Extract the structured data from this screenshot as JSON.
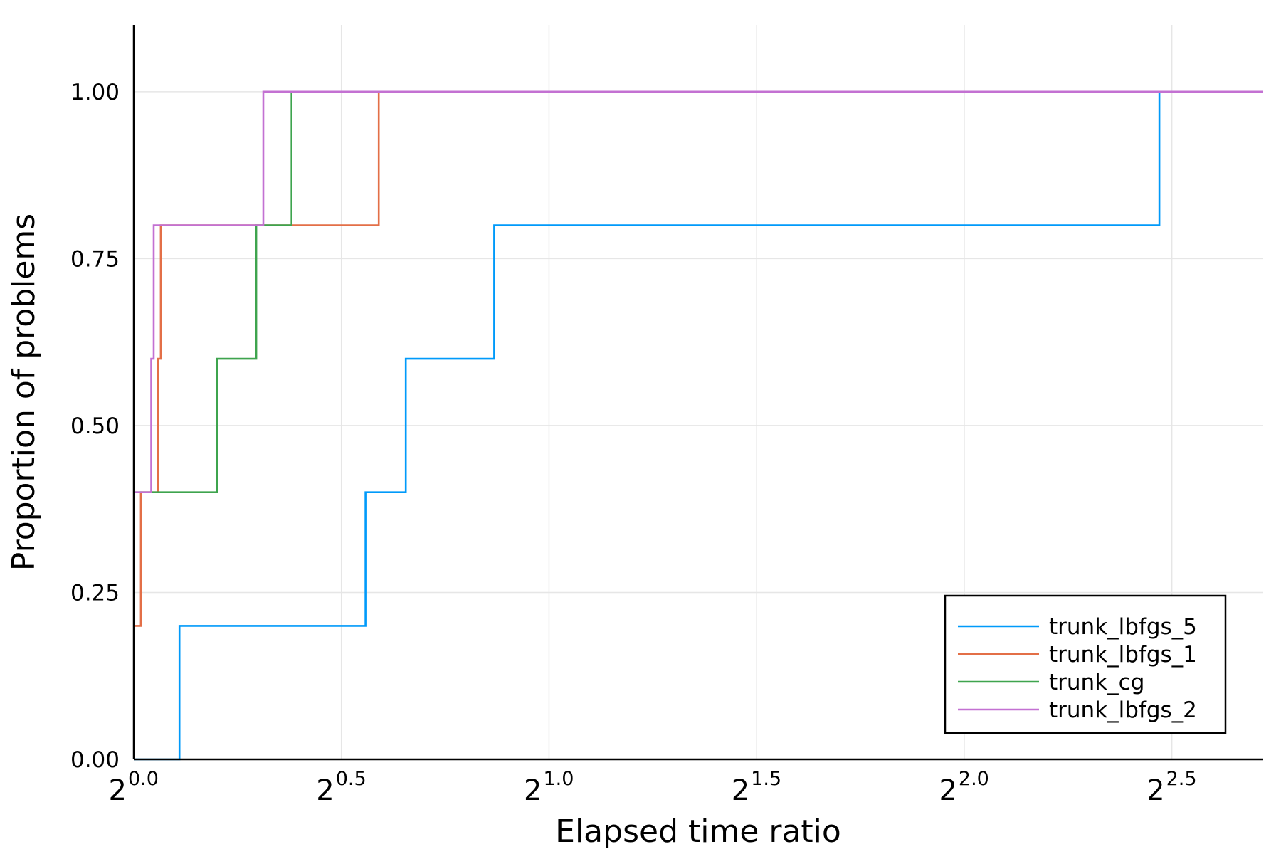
{
  "chart_data": {
    "type": "line",
    "step": true,
    "title": "",
    "xlabel": "Elapsed time ratio",
    "ylabel": "Proportion of problems",
    "x_scale": "log2",
    "xlim_log2": [
      0.0,
      2.72
    ],
    "ylim": [
      0.0,
      1.1
    ],
    "x_ticks": [
      {
        "base": "2",
        "exp": "0.0",
        "value": 0.0
      },
      {
        "base": "2",
        "exp": "0.5",
        "value": 0.5
      },
      {
        "base": "2",
        "exp": "1.0",
        "value": 1.0
      },
      {
        "base": "2",
        "exp": "1.5",
        "value": 1.5
      },
      {
        "base": "2",
        "exp": "2.0",
        "value": 2.0
      },
      {
        "base": "2",
        "exp": "2.5",
        "value": 2.5
      }
    ],
    "y_ticks": [
      {
        "label": "0.00",
        "value": 0.0
      },
      {
        "label": "0.25",
        "value": 0.25
      },
      {
        "label": "0.50",
        "value": 0.5
      },
      {
        "label": "0.75",
        "value": 0.75
      },
      {
        "label": "1.00",
        "value": 1.0
      }
    ],
    "grid": true,
    "legend_position": "bottom-right",
    "series": [
      {
        "name": "trunk_lbfgs_5",
        "color": "#009AFA",
        "points": [
          [
            0.0,
            0.0
          ],
          [
            0.11,
            0.0
          ],
          [
            0.11,
            0.2
          ],
          [
            0.558,
            0.2
          ],
          [
            0.558,
            0.4
          ],
          [
            0.655,
            0.4
          ],
          [
            0.655,
            0.6
          ],
          [
            0.868,
            0.6
          ],
          [
            0.868,
            0.8
          ],
          [
            2.47,
            0.8
          ],
          [
            2.47,
            1.0
          ],
          [
            2.72,
            1.0
          ]
        ]
      },
      {
        "name": "trunk_lbfgs_1",
        "color": "#E36F47",
        "points": [
          [
            0.0,
            0.2
          ],
          [
            0.017,
            0.2
          ],
          [
            0.017,
            0.4
          ],
          [
            0.058,
            0.4
          ],
          [
            0.058,
            0.6
          ],
          [
            0.065,
            0.6
          ],
          [
            0.065,
            0.8
          ],
          [
            0.59,
            0.8
          ],
          [
            0.59,
            1.0
          ],
          [
            2.72,
            1.0
          ]
        ]
      },
      {
        "name": "trunk_cg",
        "color": "#3EA44E",
        "points": [
          [
            0.0,
            0.4
          ],
          [
            0.2,
            0.4
          ],
          [
            0.2,
            0.6
          ],
          [
            0.295,
            0.6
          ],
          [
            0.295,
            0.8
          ],
          [
            0.38,
            0.8
          ],
          [
            0.38,
            1.0
          ],
          [
            2.72,
            1.0
          ]
        ]
      },
      {
        "name": "trunk_lbfgs_2",
        "color": "#C371D2",
        "points": [
          [
            0.0,
            0.4
          ],
          [
            0.042,
            0.4
          ],
          [
            0.042,
            0.6
          ],
          [
            0.048,
            0.6
          ],
          [
            0.048,
            0.8
          ],
          [
            0.312,
            0.8
          ],
          [
            0.312,
            1.0
          ],
          [
            2.72,
            1.0
          ]
        ]
      }
    ]
  }
}
